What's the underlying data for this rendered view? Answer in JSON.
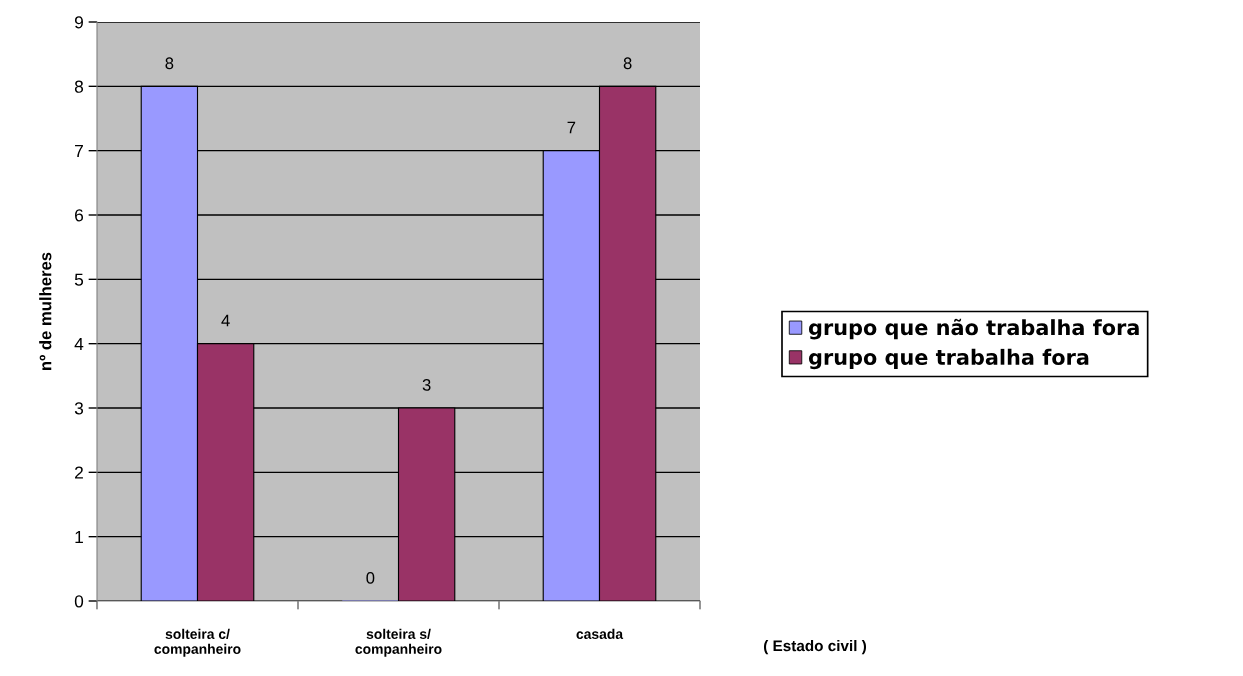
{
  "chart_data": {
    "type": "bar",
    "xlabel": "( Estado civil )",
    "ylabel": "nº de mulheres",
    "categories": [
      "solteira c/\ncompanheiro",
      "solteira s/\ncompanheiro",
      "casada"
    ],
    "series": [
      {
        "name": "grupo que não trabalha fora",
        "color": "#9999ff",
        "values": [
          8,
          0,
          7
        ]
      },
      {
        "name": "grupo que trabalha fora",
        "color": "#993366",
        "values": [
          4,
          3,
          8
        ]
      }
    ],
    "ylim": [
      0,
      9
    ],
    "yticks": [
      0,
      1,
      2,
      3,
      4,
      5,
      6,
      7,
      8,
      9
    ],
    "grid": "y",
    "legend": "right",
    "data_labels": true
  }
}
